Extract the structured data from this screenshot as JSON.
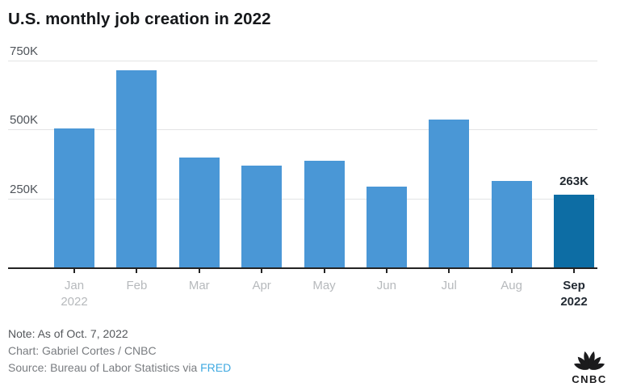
{
  "chart_data": {
    "type": "bar",
    "title": "U.S. monthly job creation in 2022",
    "categories": [
      "Jan",
      "Feb",
      "Mar",
      "Apr",
      "May",
      "Jun",
      "Jul",
      "Aug",
      "Sep"
    ],
    "category_sublabels": [
      "2022",
      "",
      "",
      "",
      "",
      "",
      "",
      "",
      "2022"
    ],
    "values": [
      504,
      714,
      398,
      368,
      386,
      293,
      537,
      315,
      263
    ],
    "value_unit": "K (thousands of jobs)",
    "ylim": [
      0,
      750
    ],
    "yticks": [
      {
        "value": 750,
        "label": "750K"
      },
      {
        "value": 500,
        "label": "500K"
      },
      {
        "value": 250,
        "label": "250K"
      }
    ],
    "grid": true,
    "legend": "none",
    "highlight_index": 8,
    "highlight_annotation": "263K",
    "colors": {
      "bar": "#4a97d6",
      "highlight_bar": "#0d6da4",
      "gridline": "#e3e4e5",
      "axis": "#232323"
    }
  },
  "footer": {
    "note": "Note: As of Oct. 7, 2022",
    "credit": "Chart: Gabriel Cortes / CNBC",
    "source_prefix": "Source: Bureau of Labor Statistics via ",
    "source_link_label": "FRED"
  },
  "logo": {
    "label": "CNBC"
  },
  "colors": {
    "title": "#16181b",
    "ytick_label": "#4f545a",
    "xtick_label": "#b6b9bc",
    "xtick_highlight": "#222a33",
    "annotation": "#222930",
    "note_text": "#54575b",
    "credit_text": "#797c80",
    "link": "#3fa9e1"
  }
}
